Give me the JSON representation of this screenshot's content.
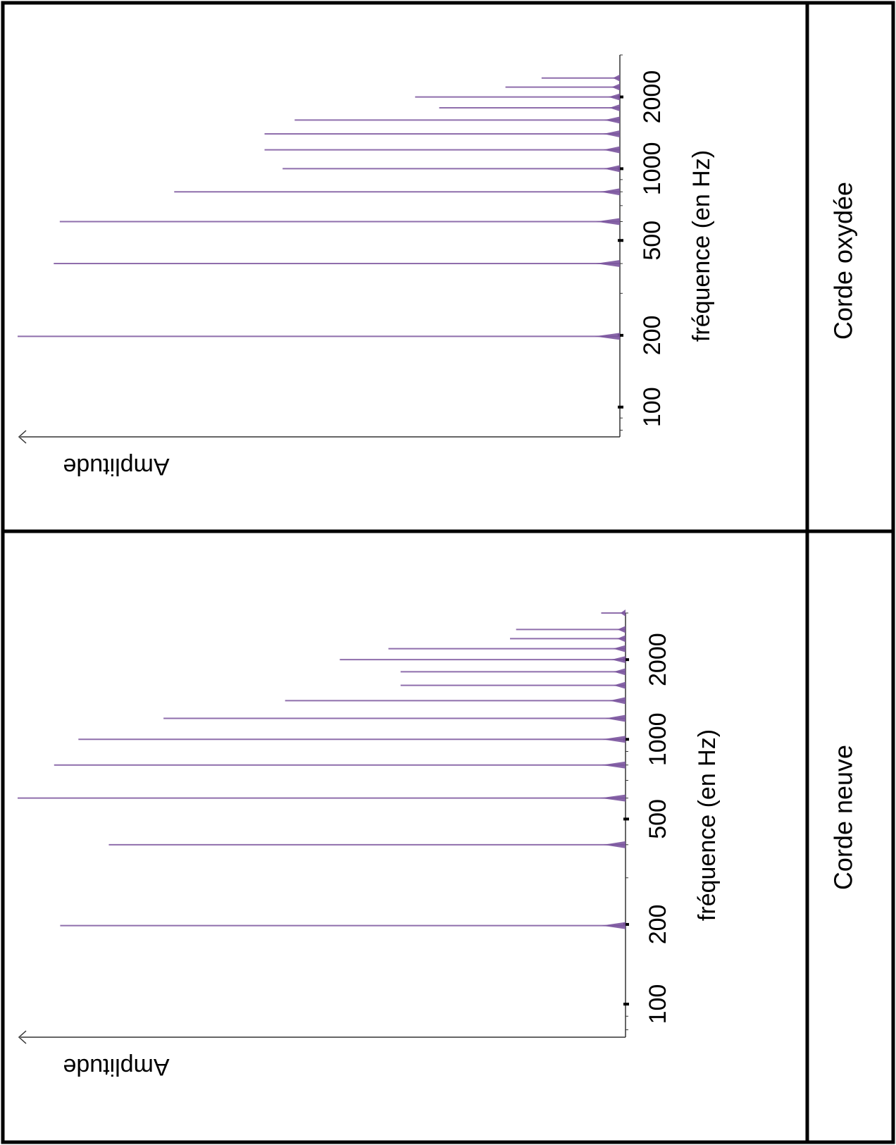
{
  "chart_data": [
    {
      "type": "bar",
      "title": "",
      "caption": "Corde oxydée",
      "xlabel": "fréquence (en Hz)",
      "ylabel": "Amplitude",
      "x_scale": "log",
      "xlim": [
        75,
        3000
      ],
      "ylim": [
        0,
        1
      ],
      "x_ticks": [
        100,
        200,
        500,
        1000,
        2000
      ],
      "peaks": [
        {
          "f": 198,
          "a": 1.0
        },
        {
          "f": 400,
          "a": 0.94
        },
        {
          "f": 600,
          "a": 0.93
        },
        {
          "f": 800,
          "a": 0.74
        },
        {
          "f": 1000,
          "a": 0.56
        },
        {
          "f": 1200,
          "a": 0.59
        },
        {
          "f": 1400,
          "a": 0.59
        },
        {
          "f": 1600,
          "a": 0.54
        },
        {
          "f": 1800,
          "a": 0.3
        },
        {
          "f": 2000,
          "a": 0.34
        },
        {
          "f": 2200,
          "a": 0.19
        },
        {
          "f": 2400,
          "a": 0.13
        }
      ]
    },
    {
      "type": "bar",
      "title": "",
      "caption": "Corde neuve",
      "xlabel": "fréquence (en Hz)",
      "ylabel": "Amplitude",
      "x_scale": "log",
      "xlim": [
        75,
        3000
      ],
      "ylim": [
        0,
        1
      ],
      "x_ticks": [
        100,
        200,
        500,
        1000,
        2000
      ],
      "peaks": [
        {
          "f": 198,
          "a": 0.93
        },
        {
          "f": 400,
          "a": 0.85
        },
        {
          "f": 600,
          "a": 1.0
        },
        {
          "f": 800,
          "a": 0.94
        },
        {
          "f": 1000,
          "a": 0.9
        },
        {
          "f": 1200,
          "a": 0.76
        },
        {
          "f": 1400,
          "a": 0.56
        },
        {
          "f": 1600,
          "a": 0.37
        },
        {
          "f": 1800,
          "a": 0.37
        },
        {
          "f": 2000,
          "a": 0.47
        },
        {
          "f": 2200,
          "a": 0.39
        },
        {
          "f": 2400,
          "a": 0.19
        },
        {
          "f": 2600,
          "a": 0.18
        },
        {
          "f": 3000,
          "a": 0.04
        }
      ]
    }
  ],
  "colors": {
    "spectrum": "#7b559e",
    "axis": "#333333",
    "border": "#000000"
  }
}
